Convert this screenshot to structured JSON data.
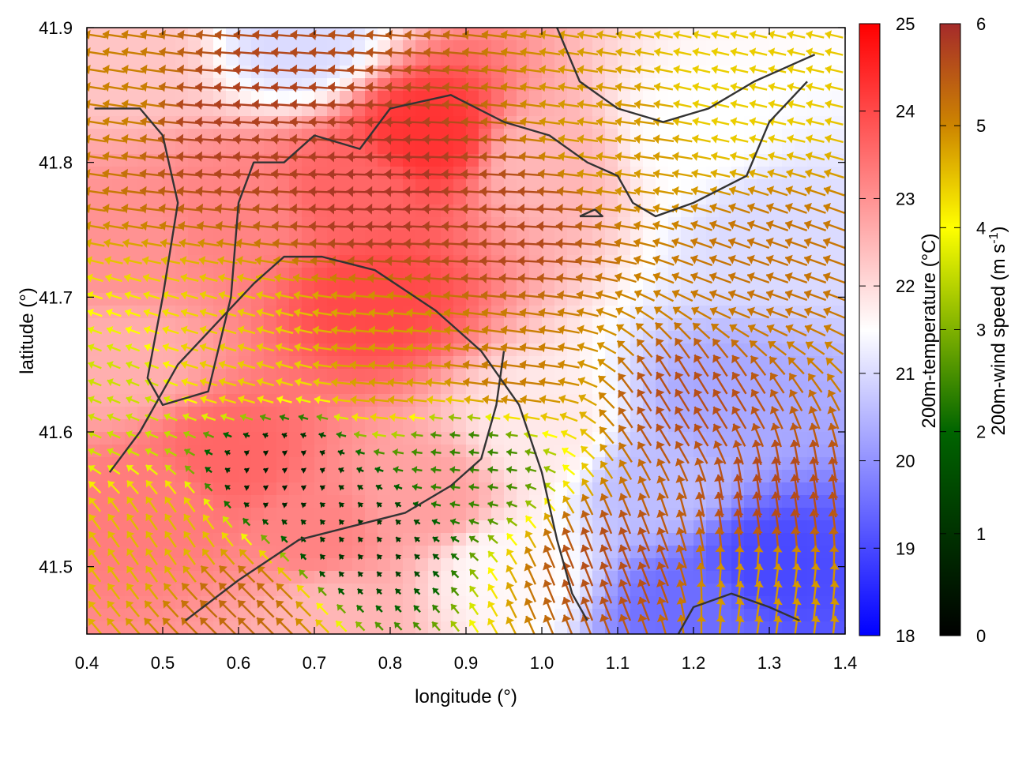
{
  "chart_data": {
    "type": "heatmap",
    "subtype": "temperature field with wind vectors and terrain contours",
    "xlabel": "longitude (°)",
    "ylabel": "latitude (°)",
    "xlim": [
      0.4,
      1.4
    ],
    "ylim": [
      41.45,
      41.9
    ],
    "xticks": [
      "0.4",
      "0.5",
      "0.6",
      "0.7",
      "0.8",
      "0.9",
      "1.0",
      "1.1",
      "1.2",
      "1.3",
      "1.4"
    ],
    "yticks": [
      "41.5",
      "41.6",
      "41.7",
      "41.8",
      "41.9"
    ],
    "temperature_colorbar": {
      "label": "200m-temperature (°C)",
      "range": [
        18,
        25
      ],
      "ticks": [
        "18",
        "19",
        "20",
        "21",
        "22",
        "23",
        "24",
        "25"
      ],
      "colors": [
        "#0000ff",
        "#ffffff",
        "#ff0000"
      ]
    },
    "wind_colorbar": {
      "label": "200m-wind speed (m s",
      "label_exp": "-1",
      "label_close": ")",
      "range": [
        0,
        6
      ],
      "ticks": [
        "0",
        "1",
        "2",
        "3",
        "4",
        "5",
        "6"
      ],
      "colors": [
        "#000000",
        "#006400",
        "#ffff00",
        "#cd8500",
        "#a52a2a"
      ]
    },
    "temperature_field": [
      {
        "lon": 0.45,
        "lat": 41.88,
        "t": 22.3
      },
      {
        "lon": 0.68,
        "lat": 41.89,
        "t": 21.0
      },
      {
        "lon": 0.85,
        "lat": 41.82,
        "t": 24.3
      },
      {
        "lon": 0.75,
        "lat": 41.78,
        "t": 23.6
      },
      {
        "lon": 0.6,
        "lat": 41.76,
        "t": 23.2
      },
      {
        "lon": 0.45,
        "lat": 41.74,
        "t": 23.0
      },
      {
        "lon": 0.78,
        "lat": 41.7,
        "t": 24.0
      },
      {
        "lon": 1.0,
        "lat": 41.8,
        "t": 22.5
      },
      {
        "lon": 1.2,
        "lat": 41.82,
        "t": 21.5
      },
      {
        "lon": 1.3,
        "lat": 41.75,
        "t": 21.0
      },
      {
        "lon": 1.25,
        "lat": 41.62,
        "t": 20.3
      },
      {
        "lon": 1.3,
        "lat": 41.5,
        "t": 19.0
      },
      {
        "lon": 1.2,
        "lat": 41.47,
        "t": 19.5
      },
      {
        "lon": 1.15,
        "lat": 41.56,
        "t": 20.6
      },
      {
        "lon": 1.0,
        "lat": 41.6,
        "t": 21.8
      },
      {
        "lon": 0.95,
        "lat": 41.5,
        "t": 21.6
      },
      {
        "lon": 0.85,
        "lat": 41.55,
        "t": 22.8
      },
      {
        "lon": 0.58,
        "lat": 41.58,
        "t": 23.6
      },
      {
        "lon": 0.5,
        "lat": 41.55,
        "t": 23.3
      },
      {
        "lon": 0.7,
        "lat": 41.52,
        "t": 23.2
      },
      {
        "lon": 0.45,
        "lat": 41.65,
        "t": 22.6
      },
      {
        "lon": 0.72,
        "lat": 41.47,
        "t": 22.5
      }
    ],
    "wind_field": [
      {
        "lon": 0.42,
        "lat": 41.85,
        "u": -4.5,
        "v": 0.7
      },
      {
        "lon": 0.6,
        "lat": 41.83,
        "u": -5.6,
        "v": 0.4
      },
      {
        "lon": 0.8,
        "lat": 41.78,
        "u": -5.8,
        "v": 0.2
      },
      {
        "lon": 0.95,
        "lat": 41.75,
        "u": -5.5,
        "v": 0.3
      },
      {
        "lon": 1.1,
        "lat": 41.82,
        "u": -4.2,
        "v": 0.6
      },
      {
        "lon": 1.25,
        "lat": 41.85,
        "u": -3.5,
        "v": 0.8
      },
      {
        "lon": 1.3,
        "lat": 41.72,
        "u": -4.5,
        "v": 1.6
      },
      {
        "lon": 1.2,
        "lat": 41.62,
        "u": -2.8,
        "v": 4.6
      },
      {
        "lon": 1.3,
        "lat": 41.55,
        "u": -0.8,
        "v": 5.4
      },
      {
        "lon": 1.1,
        "lat": 41.5,
        "u": -2.0,
        "v": 5.0
      },
      {
        "lon": 1.3,
        "lat": 41.48,
        "u": 0.6,
        "v": 4.2
      },
      {
        "lon": 0.95,
        "lat": 41.65,
        "u": -4.6,
        "v": 0.6
      },
      {
        "lon": 0.8,
        "lat": 41.65,
        "u": -4.2,
        "v": 0.4
      },
      {
        "lon": 0.6,
        "lat": 41.65,
        "u": -3.5,
        "v": 1.0
      },
      {
        "lon": 0.45,
        "lat": 41.62,
        "u": -2.5,
        "v": 1.0
      },
      {
        "lon": 0.65,
        "lat": 41.57,
        "u": -0.4,
        "v": 0.2
      },
      {
        "lon": 0.75,
        "lat": 41.52,
        "u": -0.5,
        "v": 0.6
      },
      {
        "lon": 0.9,
        "lat": 41.58,
        "u": -1.8,
        "v": 0.2
      },
      {
        "lon": 0.5,
        "lat": 41.52,
        "u": -2.2,
        "v": 3.2
      },
      {
        "lon": 0.6,
        "lat": 41.47,
        "u": -3.5,
        "v": 3.5
      }
    ],
    "contours": [
      [
        [
          0.41,
          41.84
        ],
        [
          0.47,
          41.84
        ],
        [
          0.5,
          41.82
        ],
        [
          0.52,
          41.77
        ],
        [
          0.5,
          41.7
        ],
        [
          0.48,
          41.64
        ],
        [
          0.5,
          41.62
        ],
        [
          0.56,
          41.63
        ],
        [
          0.59,
          41.7
        ],
        [
          0.6,
          41.77
        ],
        [
          0.62,
          41.8
        ],
        [
          0.66,
          41.8
        ],
        [
          0.7,
          41.82
        ],
        [
          0.76,
          41.81
        ],
        [
          0.8,
          41.84
        ],
        [
          0.88,
          41.85
        ],
        [
          0.95,
          41.83
        ],
        [
          1.01,
          41.82
        ],
        [
          1.06,
          41.8
        ],
        [
          1.1,
          41.79
        ],
        [
          1.12,
          41.77
        ],
        [
          1.15,
          41.76
        ],
        [
          1.2,
          41.77
        ],
        [
          1.27,
          41.79
        ],
        [
          1.3,
          41.83
        ],
        [
          1.35,
          41.86
        ]
      ],
      [
        [
          0.43,
          41.57
        ],
        [
          0.47,
          41.6
        ],
        [
          0.52,
          41.65
        ],
        [
          0.57,
          41.68
        ],
        [
          0.62,
          41.71
        ],
        [
          0.66,
          41.73
        ],
        [
          0.71,
          41.73
        ],
        [
          0.78,
          41.72
        ],
        [
          0.86,
          41.69
        ],
        [
          0.92,
          41.66
        ],
        [
          0.97,
          41.62
        ],
        [
          1.0,
          41.57
        ],
        [
          1.02,
          41.52
        ],
        [
          1.04,
          41.48
        ],
        [
          1.06,
          41.46
        ]
      ],
      [
        [
          0.53,
          41.46
        ],
        [
          0.6,
          41.49
        ],
        [
          0.68,
          41.52
        ],
        [
          0.75,
          41.53
        ],
        [
          0.82,
          41.54
        ],
        [
          0.88,
          41.56
        ],
        [
          0.92,
          41.58
        ],
        [
          0.94,
          41.62
        ],
        [
          0.95,
          41.66
        ]
      ],
      [
        [
          1.02,
          41.9
        ],
        [
          1.05,
          41.86
        ],
        [
          1.1,
          41.84
        ],
        [
          1.16,
          41.83
        ],
        [
          1.22,
          41.84
        ],
        [
          1.28,
          41.86
        ],
        [
          1.32,
          41.87
        ],
        [
          1.36,
          41.88
        ]
      ],
      [
        [
          1.18,
          41.45
        ],
        [
          1.2,
          41.47
        ],
        [
          1.25,
          41.48
        ],
        [
          1.3,
          41.47
        ],
        [
          1.34,
          41.46
        ]
      ],
      [
        [
          1.05,
          41.76
        ],
        [
          1.08,
          41.76
        ],
        [
          1.07,
          41.765
        ],
        [
          1.05,
          41.76
        ]
      ]
    ]
  }
}
